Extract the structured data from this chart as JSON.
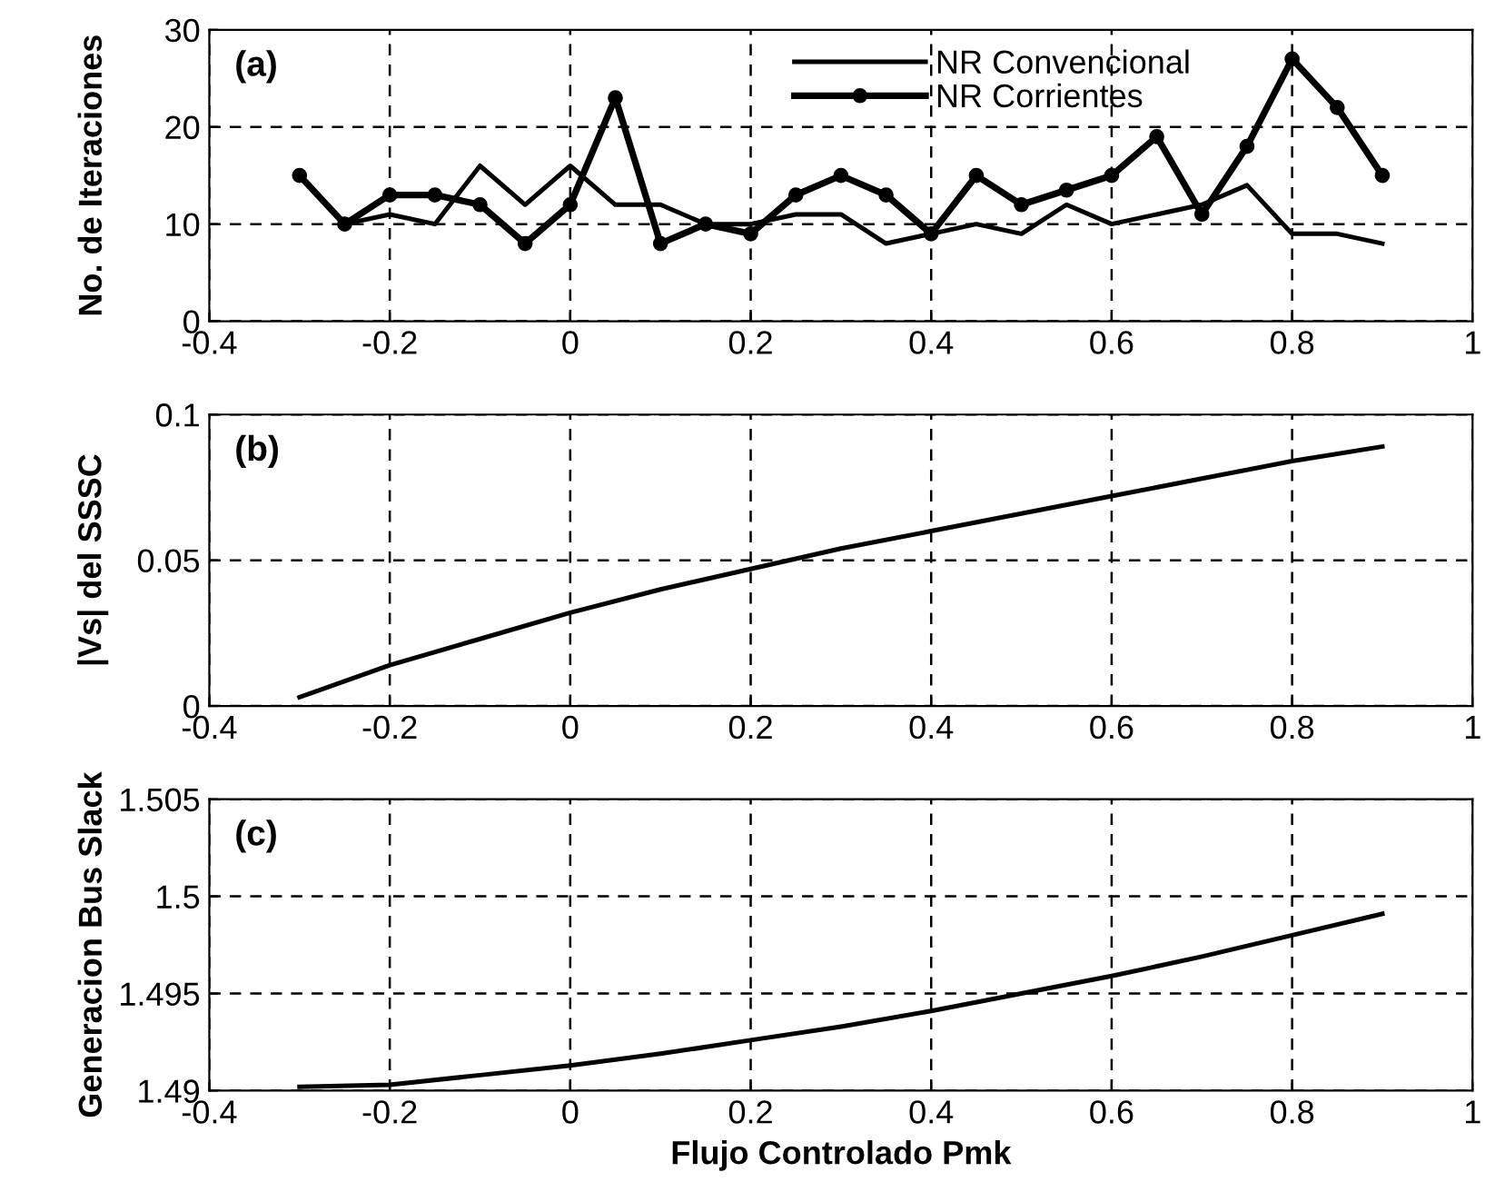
{
  "chart_data": [
    {
      "type": "line",
      "ylabel": "No. de Iteraciones",
      "annotations": [
        "(a)"
      ],
      "xlim": [
        -0.4,
        1
      ],
      "xticks": [
        -0.4,
        -0.2,
        0,
        0.2,
        0.4,
        0.6,
        0.8,
        1
      ],
      "ylim": [
        0,
        30
      ],
      "yticks": [
        0,
        10,
        20,
        30
      ],
      "grid": true,
      "legend": "top",
      "line_style": "solid",
      "x": [
        -0.3,
        -0.25,
        -0.2,
        -0.15,
        -0.1,
        -0.05,
        0,
        0.05,
        0.1,
        0.15,
        0.2,
        0.25,
        0.3,
        0.35,
        0.4,
        0.45,
        0.5,
        0.55,
        0.6,
        0.65,
        0.7,
        0.75,
        0.8,
        0.85,
        0.9
      ],
      "series": [
        {
          "name": "NR Convencional",
          "color": "#000000",
          "marker": "none",
          "values": [
            15,
            10,
            11,
            10,
            16,
            12,
            16,
            12,
            12,
            10,
            10,
            11,
            11,
            8,
            9,
            10,
            9,
            12,
            10,
            11,
            12,
            14,
            9,
            9,
            8
          ]
        },
        {
          "name": "NR Corrientes",
          "color": "#000000",
          "marker": "circle",
          "values": [
            15,
            10,
            13,
            13,
            12,
            8,
            12,
            23,
            8,
            10,
            9,
            13,
            15,
            13,
            9,
            15,
            12,
            13.5,
            15,
            19,
            11,
            18,
            27,
            22,
            15
          ]
        }
      ]
    },
    {
      "type": "line",
      "ylabel": "|Vs| del SSSC",
      "annotations": [
        "(b)"
      ],
      "xlim": [
        -0.4,
        1
      ],
      "xticks": [
        -0.4,
        -0.2,
        0,
        0.2,
        0.4,
        0.6,
        0.8,
        1
      ],
      "ylim": [
        0,
        0.1
      ],
      "yticks": [
        0,
        0.05,
        0.1
      ],
      "grid": true,
      "marker": "none",
      "line_style": "solid",
      "x": [
        -0.3,
        -0.2,
        -0.1,
        0,
        0.1,
        0.2,
        0.3,
        0.4,
        0.5,
        0.6,
        0.7,
        0.8,
        0.9
      ],
      "series": [
        {
          "color": "#000000",
          "values": [
            0.003,
            0.014,
            0.023,
            0.032,
            0.04,
            0.047,
            0.054,
            0.06,
            0.066,
            0.072,
            0.078,
            0.084,
            0.089
          ]
        }
      ]
    },
    {
      "type": "line",
      "xlabel": "Flujo Controlado Pmk",
      "ylabel": "Generacion Bus Slack",
      "annotations": [
        "(c)"
      ],
      "xlim": [
        -0.4,
        1
      ],
      "xticks": [
        -0.4,
        -0.2,
        0,
        0.2,
        0.4,
        0.6,
        0.8,
        1
      ],
      "ylim": [
        1.49,
        1.505
      ],
      "yticks": [
        1.49,
        1.495,
        1.5,
        1.505
      ],
      "grid": true,
      "marker": "none",
      "line_style": "solid",
      "x": [
        -0.3,
        -0.2,
        -0.1,
        0,
        0.1,
        0.2,
        0.3,
        0.4,
        0.5,
        0.6,
        0.7,
        0.8,
        0.9
      ],
      "series": [
        {
          "color": "#000000",
          "values": [
            1.4902,
            1.4903,
            1.4908,
            1.4913,
            1.4919,
            1.4926,
            1.4933,
            1.4941,
            1.495,
            1.4959,
            1.4969,
            1.498,
            1.4991
          ]
        }
      ]
    }
  ]
}
